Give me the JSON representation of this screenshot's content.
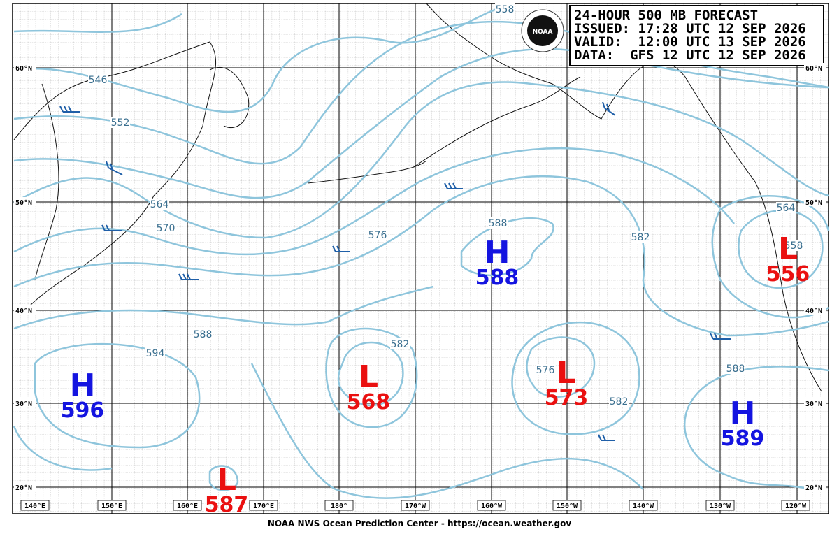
{
  "header": {
    "lines": [
      "24-HOUR 500 MB FORECAST",
      "ISSUED: 17:28 UTC 12 SEP 2026",
      "VALID:  12:00 UTC 13 SEP 2026",
      "DATA:  GFS 12 UTC 12 SEP 2026"
    ]
  },
  "logo": "NOAA",
  "centers": [
    {
      "letter": "H",
      "value": 596
    },
    {
      "letter": "L",
      "value": 568
    },
    {
      "letter": "L",
      "value": 573
    },
    {
      "letter": "H",
      "value": 588
    },
    {
      "letter": "L",
      "value": 556
    },
    {
      "letter": "H",
      "value": 589
    },
    {
      "letter": "L",
      "value": 587
    }
  ],
  "contour_labels": [
    546,
    552,
    558,
    564,
    570,
    576,
    582,
    588,
    588,
    594,
    582,
    576,
    582,
    564,
    588,
    558
  ],
  "latitudes": [
    "60°N",
    "50°N",
    "40°N",
    "30°N",
    "20°N"
  ],
  "longitudes": [
    "140°E",
    "150°E",
    "160°E",
    "170°E",
    "180°",
    "170°W",
    "160°W",
    "150°W",
    "140°W",
    "130°W",
    "120°W"
  ],
  "footer": "NOAA NWS Ocean Prediction Center - https://ocean.weather.gov"
}
